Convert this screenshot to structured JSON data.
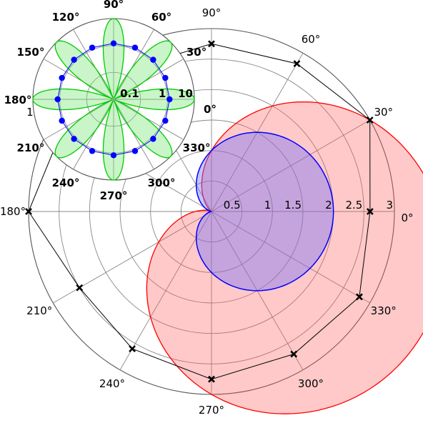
{
  "chart_data": [
    {
      "type": "polar",
      "name": "main",
      "angular_ticks": [
        {
          "deg": 0,
          "label": "0°"
        },
        {
          "deg": 30,
          "label": "30°"
        },
        {
          "deg": 60,
          "label": "60°"
        },
        {
          "deg": 90,
          "label": "90°"
        },
        {
          "deg": 120,
          "label": "120°"
        },
        {
          "deg": 150,
          "label": "150°"
        },
        {
          "deg": 180,
          "label": "180°"
        },
        {
          "deg": 210,
          "label": "210°"
        },
        {
          "deg": 240,
          "label": "240°"
        },
        {
          "deg": 270,
          "label": "270°"
        },
        {
          "deg": 300,
          "label": "300°"
        },
        {
          "deg": 330,
          "label": "330°"
        }
      ],
      "radial_ticks": [
        {
          "value": 0.5,
          "label": "0.5"
        },
        {
          "value": 1,
          "label": "1"
        },
        {
          "value": 1.5,
          "label": "1.5"
        },
        {
          "value": 2,
          "label": "2"
        },
        {
          "value": 2.5,
          "label": "2.5"
        },
        {
          "value": 3,
          "label": "3"
        }
      ],
      "rlim": [
        0,
        3
      ],
      "grid": true,
      "series": [
        {
          "kind": "filled-curve",
          "formula": "r = 1 + cos(theta)",
          "color": "#0000ff",
          "fill": "rgba(110,110,255,0.4)"
        },
        {
          "kind": "filled-curve",
          "formula": "r = 2 + 2*cos(theta - 330°)",
          "color": "#ff0000",
          "fill": "rgba(255,90,90,0.33)"
        },
        {
          "kind": "line-markers",
          "marker": "x",
          "color": "#000000",
          "points": [
            {
              "theta": 0,
              "r": 2.6
            },
            {
              "theta": 30,
              "r": 3.0
            },
            {
              "theta": 60,
              "r": 2.8
            },
            {
              "theta": 90,
              "r": 2.75
            },
            {
              "theta": 120,
              "r": 2.7
            },
            {
              "theta": 150,
              "r": 2.8
            },
            {
              "theta": 180,
              "r": 3.0
            },
            {
              "theta": 210,
              "r": 2.5
            },
            {
              "theta": 240,
              "r": 2.6
            },
            {
              "theta": 270,
              "r": 2.75
            },
            {
              "theta": 300,
              "r": 2.7
            },
            {
              "theta": 330,
              "r": 2.8
            }
          ]
        }
      ]
    },
    {
      "type": "polar",
      "name": "inset",
      "rscale": "log",
      "rlim": [
        0.01,
        10
      ],
      "angular_ticks": [
        {
          "deg": 0,
          "label": "0°"
        },
        {
          "deg": 30,
          "label": "30°"
        },
        {
          "deg": 60,
          "label": "60°"
        },
        {
          "deg": 90,
          "label": "90°"
        },
        {
          "deg": 120,
          "label": "120°"
        },
        {
          "deg": 150,
          "label": "150°"
        },
        {
          "deg": 180,
          "label": "180°"
        },
        {
          "deg": 210,
          "label": "210°"
        },
        {
          "deg": 240,
          "label": "240°"
        },
        {
          "deg": 270,
          "label": "270°"
        },
        {
          "deg": 300,
          "label": "300°"
        },
        {
          "deg": 330,
          "label": "330°"
        }
      ],
      "radial_ticks": [
        {
          "value": 0.1,
          "label": "0.1"
        },
        {
          "value": 1,
          "label": "1"
        },
        {
          "value": 10,
          "label": "10"
        }
      ],
      "grid": true,
      "series": [
        {
          "kind": "petals",
          "color": "#00cc00",
          "fill": "rgba(120,230,120,0.4)",
          "count": 8,
          "base": 0.01,
          "peak": 10
        },
        {
          "kind": "line-markers",
          "marker": "o",
          "color": "#0000ff",
          "r": 1.2,
          "theta_step": 22.5
        }
      ]
    }
  ]
}
